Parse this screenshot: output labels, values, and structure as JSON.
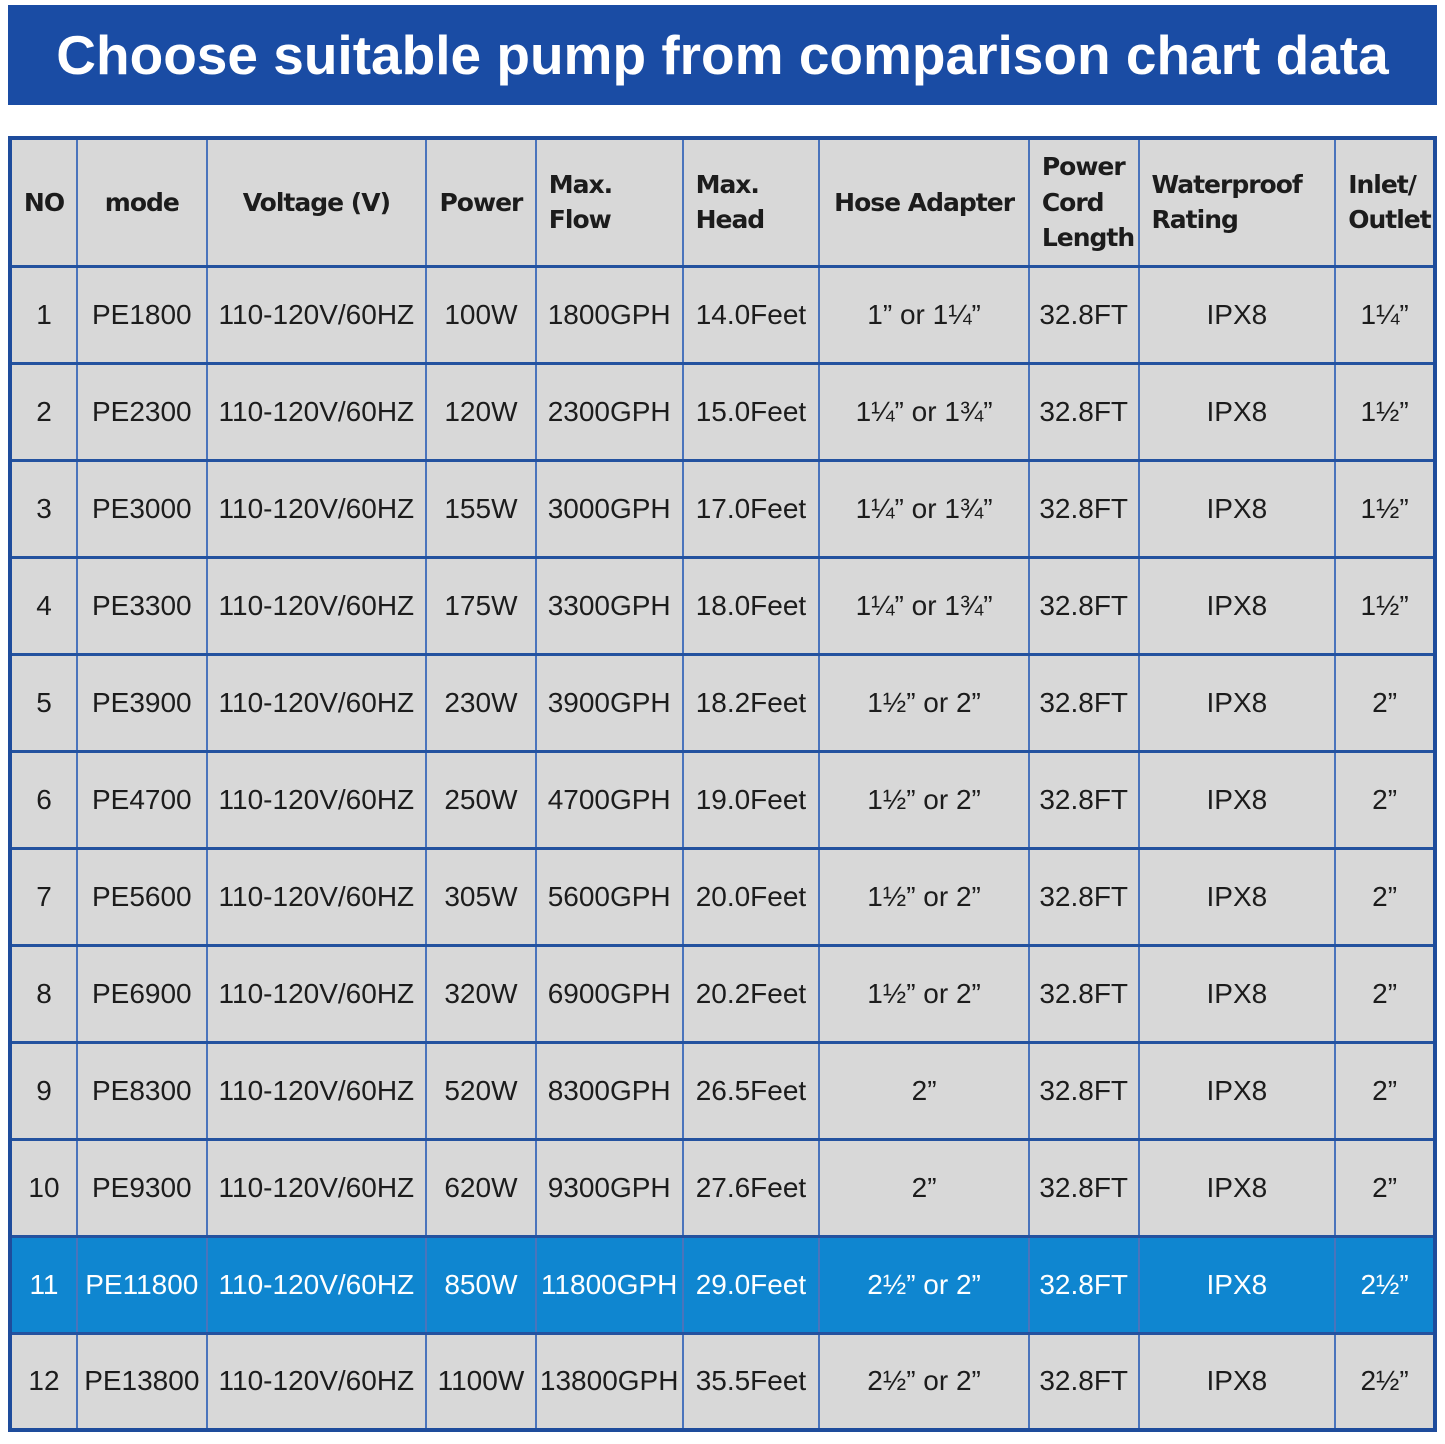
{
  "page": {
    "banner": {
      "title": "Choose suitable pump from comparison chart data"
    }
  },
  "colors": {
    "banner_bg": "#1a4ca4",
    "banner_text": "#ffffff",
    "cell_bg": "#d8d8d8",
    "border_outer": "#1e4c9c",
    "border_horizontal": "#24529f",
    "border_vertical": "#4a74bc",
    "highlight_bg": "#0f86d0",
    "highlight_text": "#ffffff",
    "body_text": "#1c1c1c"
  },
  "chart_data": {
    "type": "table",
    "title": "Choose suitable pump from comparison chart data",
    "columns": [
      "NO",
      "mode",
      "Voltage (V)",
      "Power",
      "Max.\nFlow",
      "Max.\nHead",
      "Hose Adapter",
      "Power\nCord\nLength",
      "Waterproof\nRating",
      "Inlet/\nOutlet"
    ],
    "highlighted_row_no": "11",
    "rows": [
      [
        "1",
        "PE1800",
        "110-120V/60HZ",
        "100W",
        "1800GPH",
        "14.0Feet",
        "1” or 1¼”",
        "32.8FT",
        "IPX8",
        "1¼”"
      ],
      [
        "2",
        "PE2300",
        "110-120V/60HZ",
        "120W",
        "2300GPH",
        "15.0Feet",
        "1¼” or 1¾”",
        "32.8FT",
        "IPX8",
        "1½”"
      ],
      [
        "3",
        "PE3000",
        "110-120V/60HZ",
        "155W",
        "3000GPH",
        "17.0Feet",
        "1¼” or 1¾”",
        "32.8FT",
        "IPX8",
        "1½”"
      ],
      [
        "4",
        "PE3300",
        "110-120V/60HZ",
        "175W",
        "3300GPH",
        "18.0Feet",
        "1¼” or 1¾”",
        "32.8FT",
        "IPX8",
        "1½”"
      ],
      [
        "5",
        "PE3900",
        "110-120V/60HZ",
        "230W",
        "3900GPH",
        "18.2Feet",
        "1½” or 2”",
        "32.8FT",
        "IPX8",
        "2”"
      ],
      [
        "6",
        "PE4700",
        "110-120V/60HZ",
        "250W",
        "4700GPH",
        "19.0Feet",
        "1½” or 2”",
        "32.8FT",
        "IPX8",
        "2”"
      ],
      [
        "7",
        "PE5600",
        "110-120V/60HZ",
        "305W",
        "5600GPH",
        "20.0Feet",
        "1½” or 2”",
        "32.8FT",
        "IPX8",
        "2”"
      ],
      [
        "8",
        "PE6900",
        "110-120V/60HZ",
        "320W",
        "6900GPH",
        "20.2Feet",
        "1½” or 2”",
        "32.8FT",
        "IPX8",
        "2”"
      ],
      [
        "9",
        "PE8300",
        "110-120V/60HZ",
        "520W",
        "8300GPH",
        "26.5Feet",
        "2”",
        "32.8FT",
        "IPX8",
        "2”"
      ],
      [
        "10",
        "PE9300",
        "110-120V/60HZ",
        "620W",
        "9300GPH",
        "27.6Feet",
        "2”",
        "32.8FT",
        "IPX8",
        "2”"
      ],
      [
        "11",
        "PE11800",
        "110-120V/60HZ",
        "850W",
        "11800GPH",
        "29.0Feet",
        "2½” or 2”",
        "32.8FT",
        "IPX8",
        "2½”"
      ],
      [
        "12",
        "PE13800",
        "110-120V/60HZ",
        "1100W",
        "13800GPH",
        "35.5Feet",
        "2½” or 2”",
        "32.8FT",
        "IPX8",
        "2½”"
      ]
    ]
  }
}
